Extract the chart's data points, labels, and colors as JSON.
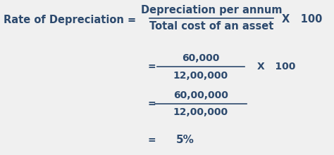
{
  "bg_color": "#f0f0f0",
  "text_color": "#2d4a6e",
  "line1_label": "Rate of Depreciation = ",
  "line1_numerator": "Depreciation per annum",
  "line1_denominator": "Total cost of an asset",
  "line1_suffix": "X   100",
  "line2_eq": "=",
  "line2_numerator": "60,000",
  "line2_denominator": "12,00,000",
  "line2_suffix": "X   100",
  "line3_eq": "=",
  "line3_numerator": "60,00,000",
  "line3_denominator": "12,00,000",
  "line4_eq": "=",
  "line4_result": "5%",
  "font_size_row1": 10.5,
  "font_size_calc": 10,
  "font_bold": "bold"
}
